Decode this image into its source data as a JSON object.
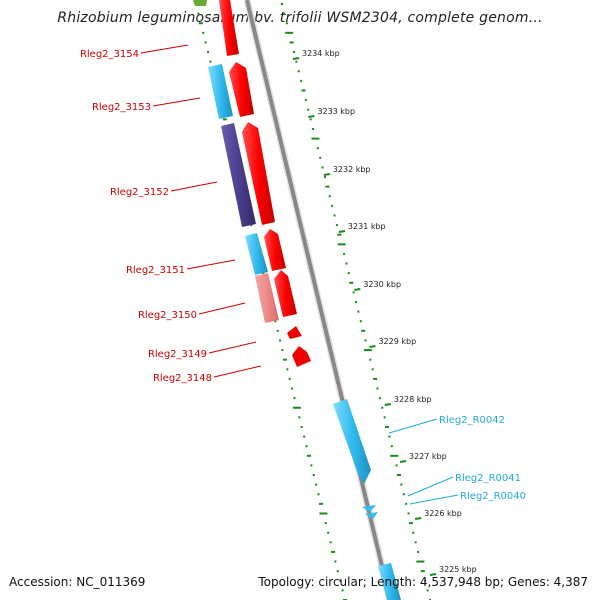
{
  "title": "Rhizobium leguminosarum bv. trifolii WSM2304, complete genom...",
  "accession": "Accession: NC_011369",
  "summary": "Topology: circular; Length: 4,537,948 bp; Genes: 4,387",
  "colors": {
    "forward_cds": "#ff0000",
    "reverse_cds": "#33bbee",
    "rna": "#33bbee",
    "reverse_dark": "#4a3f8f",
    "reverse_pink": "#ef8a8a",
    "gc_tick": "#1a8a1a",
    "backbone": "#808080",
    "label_cds": "#cc0000",
    "label_rna": "#22aadd"
  },
  "scale_labels": [
    "3234 kbp",
    "3233 kbp",
    "3232 kbp",
    "3231 kbp",
    "3230 kbp",
    "3229 kbp",
    "3228 kbp",
    "3227 kbp",
    "3226 kbp",
    "3225 kbp"
  ],
  "gene_labels": [
    "Rleg2_3154",
    "Rleg2_3153",
    "Rleg2_3152",
    "Rleg2_3151",
    "Rleg2_3150",
    "Rleg2_3149",
    "Rleg2_3148",
    "Rleg2_R0042",
    "Rleg2_R0041",
    "Rleg2_R0040"
  ]
}
